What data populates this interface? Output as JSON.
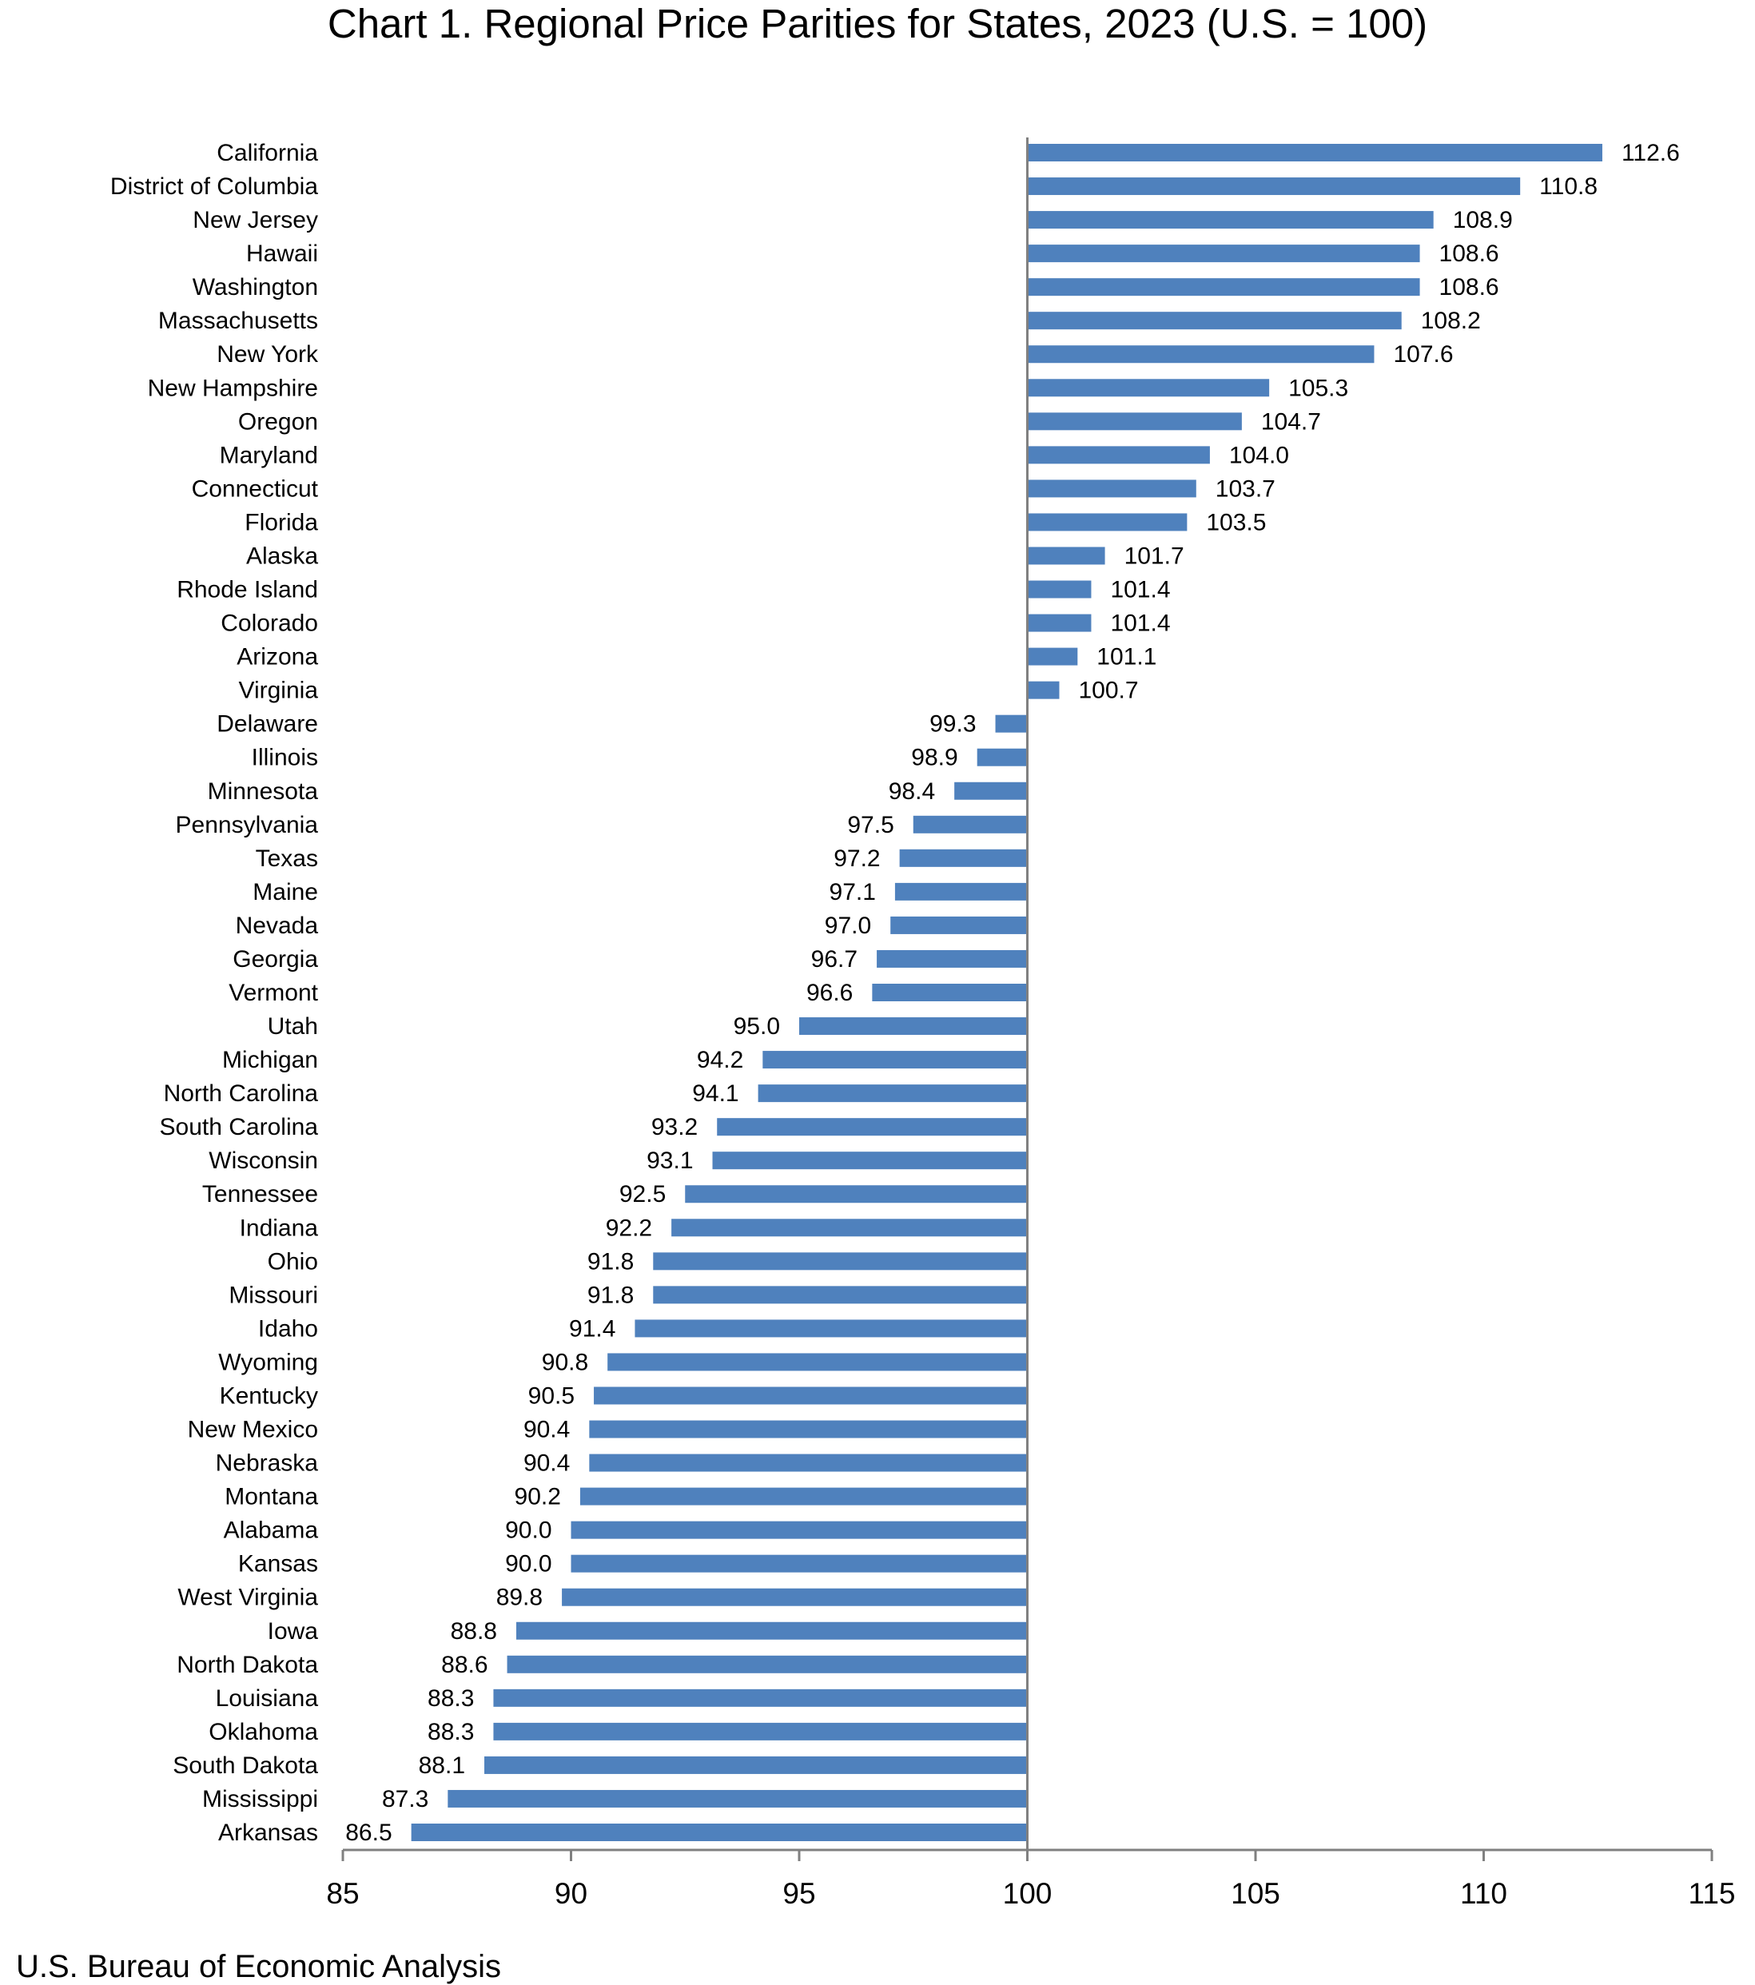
{
  "chart_data": {
    "type": "bar",
    "orientation": "horizontal",
    "title": "Chart 1. Regional Price Parities for States, 2023 (U.S. = 100)",
    "source": "U.S. Bureau of Economic Analysis",
    "baseline": 100,
    "xlim": [
      85,
      115
    ],
    "xticks": [
      85,
      90,
      95,
      100,
      105,
      110,
      115
    ],
    "bar_color": "#4f81bd",
    "axis_color": "#808080",
    "grid": false,
    "categories": [
      "California",
      "District of Columbia",
      "New Jersey",
      "Hawaii",
      "Washington",
      "Massachusetts",
      "New York",
      "New Hampshire",
      "Oregon",
      "Maryland",
      "Connecticut",
      "Florida",
      "Alaska",
      "Rhode Island",
      "Colorado",
      "Arizona",
      "Virginia",
      "Delaware",
      "Illinois",
      "Minnesota",
      "Pennsylvania",
      "Texas",
      "Maine",
      "Nevada",
      "Georgia",
      "Vermont",
      "Utah",
      "Michigan",
      "North Carolina",
      "South Carolina",
      "Wisconsin",
      "Tennessee",
      "Indiana",
      "Ohio",
      "Missouri",
      "Idaho",
      "Wyoming",
      "Kentucky",
      "New Mexico",
      "Nebraska",
      "Montana",
      "Alabama",
      "Kansas",
      "West Virginia",
      "Iowa",
      "North Dakota",
      "Louisiana",
      "Oklahoma",
      "South Dakota",
      "Mississippi",
      "Arkansas"
    ],
    "values": [
      112.6,
      110.8,
      108.9,
      108.6,
      108.6,
      108.2,
      107.6,
      105.3,
      104.7,
      104.0,
      103.7,
      103.5,
      101.7,
      101.4,
      101.4,
      101.1,
      100.7,
      99.3,
      98.9,
      98.4,
      97.5,
      97.2,
      97.1,
      97.0,
      96.7,
      96.6,
      95.0,
      94.2,
      94.1,
      93.2,
      93.1,
      92.5,
      92.2,
      91.8,
      91.8,
      91.4,
      90.8,
      90.5,
      90.4,
      90.4,
      90.2,
      90.0,
      90.0,
      89.8,
      88.8,
      88.6,
      88.3,
      88.3,
      88.1,
      87.3,
      86.5
    ]
  }
}
